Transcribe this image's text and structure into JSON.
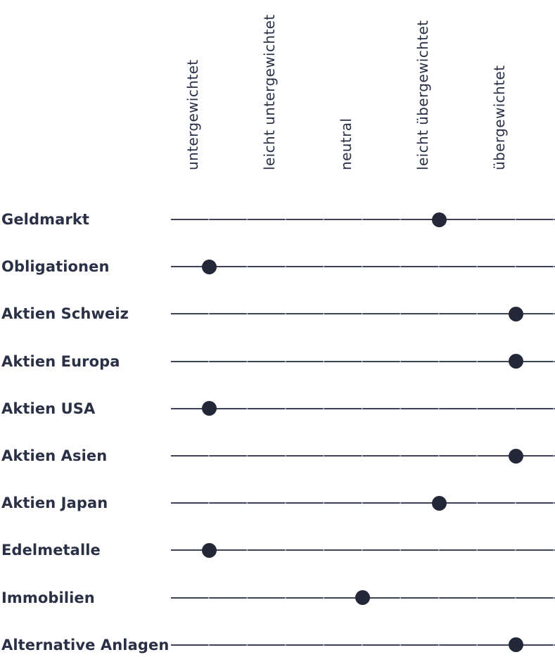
{
  "chart_data": {
    "type": "scatter",
    "subtype": "dot-positioning-chart",
    "language": "de",
    "scale_labels": [
      "untergewichtet",
      "leicht untergewichtet",
      "neutral",
      "leicht übergewichtet",
      "übergewichtet"
    ],
    "rows": [
      {
        "label": "Geldmarkt",
        "position": "leicht übergewichtet",
        "position_index": 3
      },
      {
        "label": "Obligationen",
        "position": "untergewichtet",
        "position_index": 0
      },
      {
        "label": "Aktien Schweiz",
        "position": "übergewichtet",
        "position_index": 4
      },
      {
        "label": "Aktien Europa",
        "position": "übergewichtet",
        "position_index": 4
      },
      {
        "label": "Aktien USA",
        "position": "untergewichtet",
        "position_index": 0
      },
      {
        "label": "Aktien Asien",
        "position": "übergewichtet",
        "position_index": 4
      },
      {
        "label": "Aktien Japan",
        "position": "leicht übergewichtet",
        "position_index": 3
      },
      {
        "label": "Edelmetalle",
        "position": "untergewichtet",
        "position_index": 0
      },
      {
        "label": "Immobilien",
        "position": "neutral",
        "position_index": 2
      },
      {
        "label": "Alternative Anlagen",
        "position": "übergewichtet",
        "position_index": 4
      }
    ],
    "colors": {
      "ink": "#2a3045",
      "line": "#3d4257",
      "dot": "#232838",
      "background": "#ffffff"
    },
    "layout_hints": {
      "header_rotation_deg": -90,
      "grid": "horizontal-lines-only",
      "legend": "none",
      "title": ""
    }
  }
}
